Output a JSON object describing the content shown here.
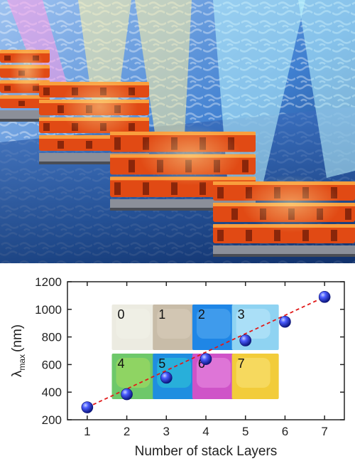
{
  "illustration": {
    "colors": {
      "sky_top": "#9fc3f0",
      "sky_mid": "#3f7fd0",
      "floor": "#10306a",
      "block_fire": "#e14a14",
      "block_glow": "#ffb347",
      "base_metal": "#8b8f99",
      "beam_cyan": "#bff7ff",
      "beam_yellow": "#fff2a6",
      "beam_magenta": "#ff9de8"
    }
  },
  "chart_data": {
    "type": "scatter",
    "title": "",
    "xlabel": "Number of stack Layers",
    "ylabel_main": "λ",
    "ylabel_sub": "max",
    "ylabel_unit": "(nm)",
    "xlim": [
      0.5,
      7.5
    ],
    "ylim": [
      200,
      1200
    ],
    "xticks": [
      1,
      2,
      3,
      4,
      5,
      6,
      7
    ],
    "yticks": [
      200,
      400,
      600,
      800,
      1000,
      1200
    ],
    "grid": false,
    "legend": "none",
    "series": [
      {
        "x": [
          1,
          2,
          3,
          4,
          5,
          6,
          7
        ],
        "y": [
          290,
          385,
          505,
          640,
          775,
          910,
          1090
        ],
        "marker": "blue-sphere",
        "color": "#1a2fd6"
      }
    ],
    "trend": {
      "style": "dashed",
      "color": "#e11a1a",
      "from": [
        1,
        290
      ],
      "to": [
        7,
        1090
      ]
    },
    "insets": [
      {
        "label": "0",
        "color": "#ecebe1",
        "accent": "#f5f4ec"
      },
      {
        "label": "1",
        "color": "#c8bca8",
        "accent": "#ddd2c0"
      },
      {
        "label": "2",
        "color": "#1f86e6",
        "accent": "#67b6f5"
      },
      {
        "label": "3",
        "color": "#8fd3f2",
        "accent": "#cceefc"
      },
      {
        "label": "4",
        "color": "#6ec86a",
        "accent": "#b9e25a"
      },
      {
        "label": "5",
        "color": "#1f8ee0",
        "accent": "#33d7d2"
      },
      {
        "label": "6",
        "color": "#cf53c8",
        "accent": "#f0a0e8"
      },
      {
        "label": "7",
        "color": "#f2cc3a",
        "accent": "#fbe98c"
      }
    ]
  }
}
